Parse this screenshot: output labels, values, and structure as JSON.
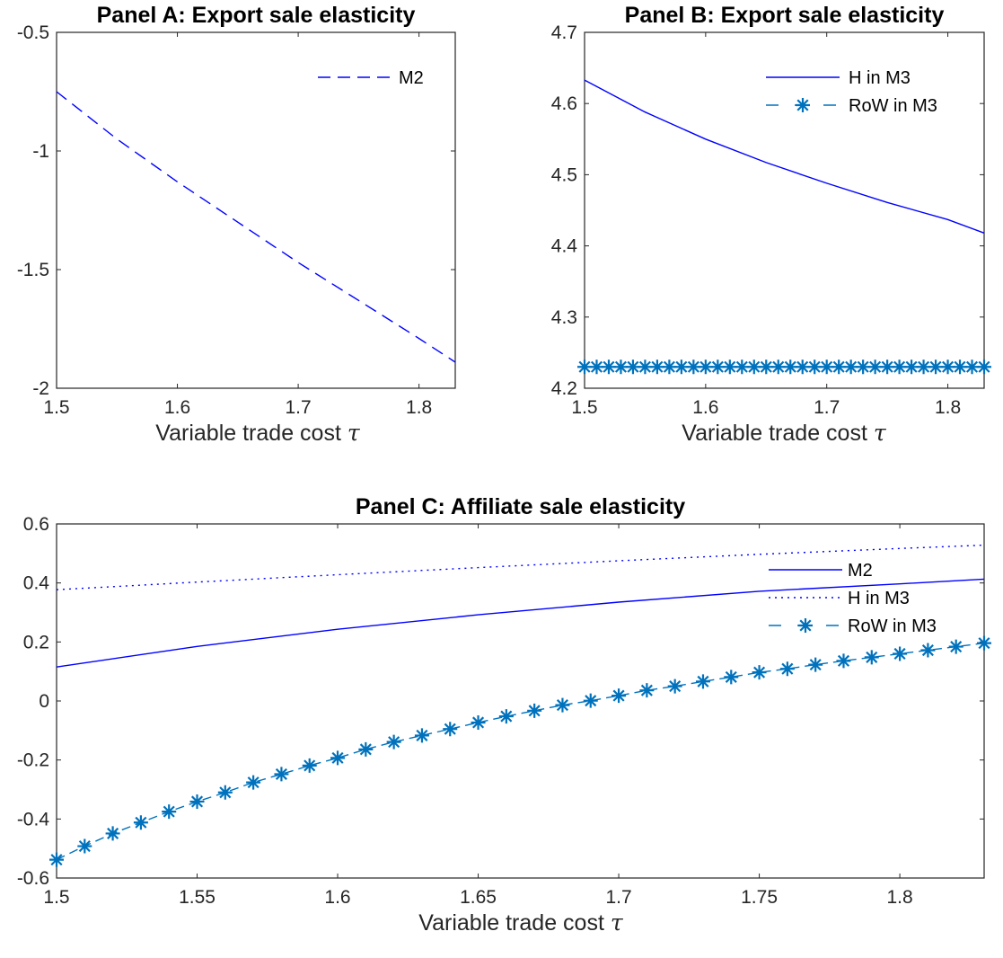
{
  "chart_data": [
    {
      "panel": "A",
      "type": "line",
      "title": "Panel A: Export sale elasticity",
      "xlabel": "Variable trade cost",
      "xlabel_symbol": "τ",
      "xlim": [
        1.5,
        1.83
      ],
      "ylim": [
        -2,
        -0.5
      ],
      "xticks": [
        1.5,
        1.6,
        1.7,
        1.8
      ],
      "xtick_labels": [
        "1.5",
        "1.6",
        "1.7",
        "1.8"
      ],
      "yticks": [
        -0.5,
        -1,
        -1.5,
        -2
      ],
      "ytick_labels": [
        "-0.5",
        "-1",
        "-1.5",
        "-2"
      ],
      "legend_position": "top-right",
      "series": [
        {
          "name": "M2",
          "style": "dashed",
          "color": "#0000ff",
          "x": [
            1.5,
            1.55,
            1.6,
            1.65,
            1.7,
            1.75,
            1.8,
            1.83
          ],
          "y": [
            -0.75,
            -0.95,
            -1.13,
            -1.3,
            -1.47,
            -1.63,
            -1.79,
            -1.89
          ]
        }
      ]
    },
    {
      "panel": "B",
      "type": "line",
      "title": "Panel B: Export sale elasticity",
      "xlabel": "Variable trade cost",
      "xlabel_symbol": "τ",
      "xlim": [
        1.5,
        1.83
      ],
      "ylim": [
        4.2,
        4.7
      ],
      "xticks": [
        1.5,
        1.6,
        1.7,
        1.8
      ],
      "xtick_labels": [
        "1.5",
        "1.6",
        "1.7",
        "1.8"
      ],
      "yticks": [
        4.7,
        4.6,
        4.5,
        4.4,
        4.3,
        4.2
      ],
      "ytick_labels": [
        "4.7",
        "4.6",
        "4.5",
        "4.4",
        "4.3",
        "4.2"
      ],
      "legend_position": "top-right",
      "series": [
        {
          "name": "H in M3",
          "style": "solid",
          "color": "#0000ff",
          "x": [
            1.5,
            1.55,
            1.6,
            1.65,
            1.7,
            1.75,
            1.8,
            1.83
          ],
          "y": [
            4.633,
            4.588,
            4.55,
            4.517,
            4.488,
            4.461,
            4.437,
            4.418
          ]
        },
        {
          "name": "RoW in M3",
          "style": "dash-star",
          "color": "#0072bd",
          "x_start": 1.5,
          "x_step": 0.01,
          "count": 34,
          "y_constant": 4.23
        }
      ]
    },
    {
      "panel": "C",
      "type": "line",
      "title": "Panel C: Affiliate sale elasticity",
      "xlabel": "Variable trade cost",
      "xlabel_symbol": "τ",
      "xlim": [
        1.5,
        1.83
      ],
      "ylim": [
        -0.6,
        0.6
      ],
      "xticks": [
        1.5,
        1.55,
        1.6,
        1.65,
        1.7,
        1.75,
        1.8
      ],
      "xtick_labels": [
        "1.5",
        "1.55",
        "1.6",
        "1.65",
        "1.7",
        "1.75",
        "1.8"
      ],
      "yticks": [
        0.6,
        0.4,
        0.2,
        0,
        -0.2,
        -0.4,
        -0.6
      ],
      "ytick_labels": [
        "0.6",
        "0.4",
        "0.2",
        "0",
        "-0.2",
        "-0.4",
        "-0.6"
      ],
      "legend_position": "top-right",
      "series": [
        {
          "name": "M2",
          "style": "solid",
          "color": "#0000ff",
          "x": [
            1.5,
            1.55,
            1.6,
            1.65,
            1.7,
            1.75,
            1.8,
            1.83
          ],
          "y": [
            0.115,
            0.185,
            0.243,
            0.292,
            0.335,
            0.372,
            0.397,
            0.413
          ]
        },
        {
          "name": "H in M3",
          "style": "dotted",
          "color": "#0000ff",
          "x": [
            1.5,
            1.55,
            1.6,
            1.65,
            1.7,
            1.75,
            1.8,
            1.83
          ],
          "y": [
            0.377,
            0.403,
            0.428,
            0.452,
            0.475,
            0.497,
            0.517,
            0.528
          ]
        },
        {
          "name": "RoW in M3",
          "style": "dash-star",
          "color": "#0072bd",
          "x": [
            1.5,
            1.51,
            1.52,
            1.53,
            1.54,
            1.55,
            1.56,
            1.57,
            1.58,
            1.59,
            1.6,
            1.61,
            1.62,
            1.63,
            1.64,
            1.65,
            1.66,
            1.67,
            1.68,
            1.69,
            1.7,
            1.71,
            1.72,
            1.73,
            1.74,
            1.75,
            1.76,
            1.77,
            1.78,
            1.79,
            1.8,
            1.81,
            1.82,
            1.83
          ],
          "y": [
            -0.538,
            -0.492,
            -0.449,
            -0.412,
            -0.375,
            -0.341,
            -0.31,
            -0.276,
            -0.248,
            -0.219,
            -0.193,
            -0.164,
            -0.139,
            -0.117,
            -0.095,
            -0.073,
            -0.052,
            -0.033,
            -0.014,
            0.001,
            0.018,
            0.036,
            0.05,
            0.066,
            0.081,
            0.097,
            0.109,
            0.123,
            0.136,
            0.148,
            0.16,
            0.172,
            0.184,
            0.196
          ]
        }
      ]
    }
  ]
}
